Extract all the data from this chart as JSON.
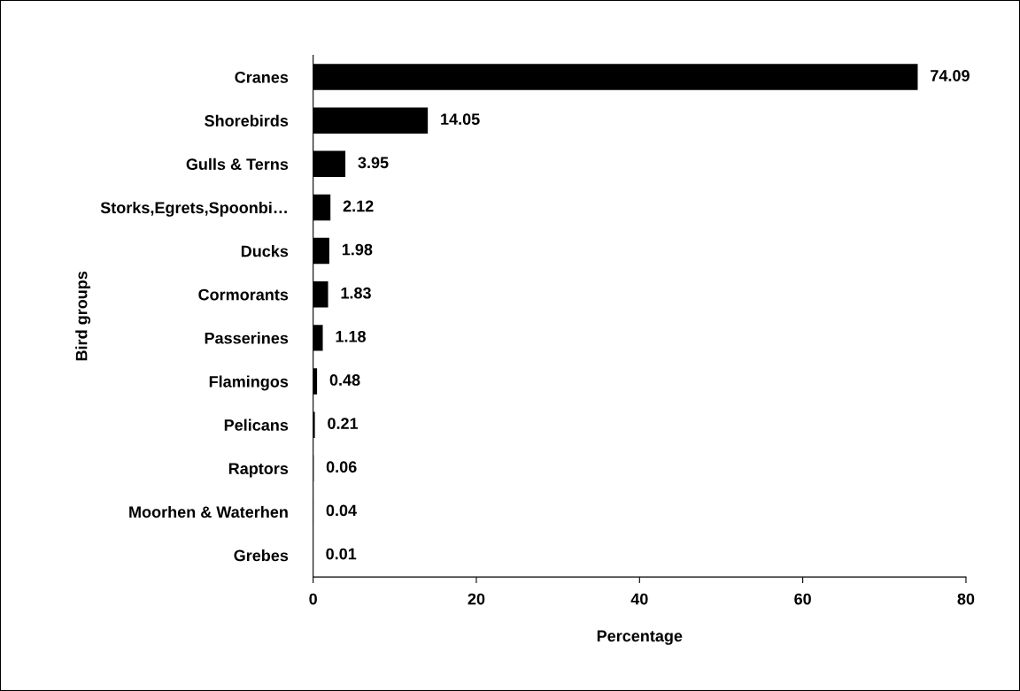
{
  "chart_data": {
    "type": "bar",
    "orientation": "horizontal",
    "xlabel": "Percentage",
    "ylabel": "Bird groups",
    "categories": [
      "Cranes",
      "Shorebirds",
      "Gulls & Terns",
      "Storks,Egrets,Spoonbi…",
      "Ducks",
      "Cormorants",
      "Passerines",
      "Flamingos",
      "Pelicans",
      "Raptors",
      "Moorhen & Waterhen",
      "Grebes"
    ],
    "values": [
      74.09,
      14.05,
      3.95,
      2.12,
      1.98,
      1.83,
      1.18,
      0.48,
      0.21,
      0.06,
      0.04,
      0.01
    ],
    "color": "#000000",
    "data_labels": true,
    "xlim": [
      0,
      80
    ],
    "xticks": [
      0,
      20,
      40,
      60,
      80
    ],
    "grid": false,
    "legend": false
  }
}
